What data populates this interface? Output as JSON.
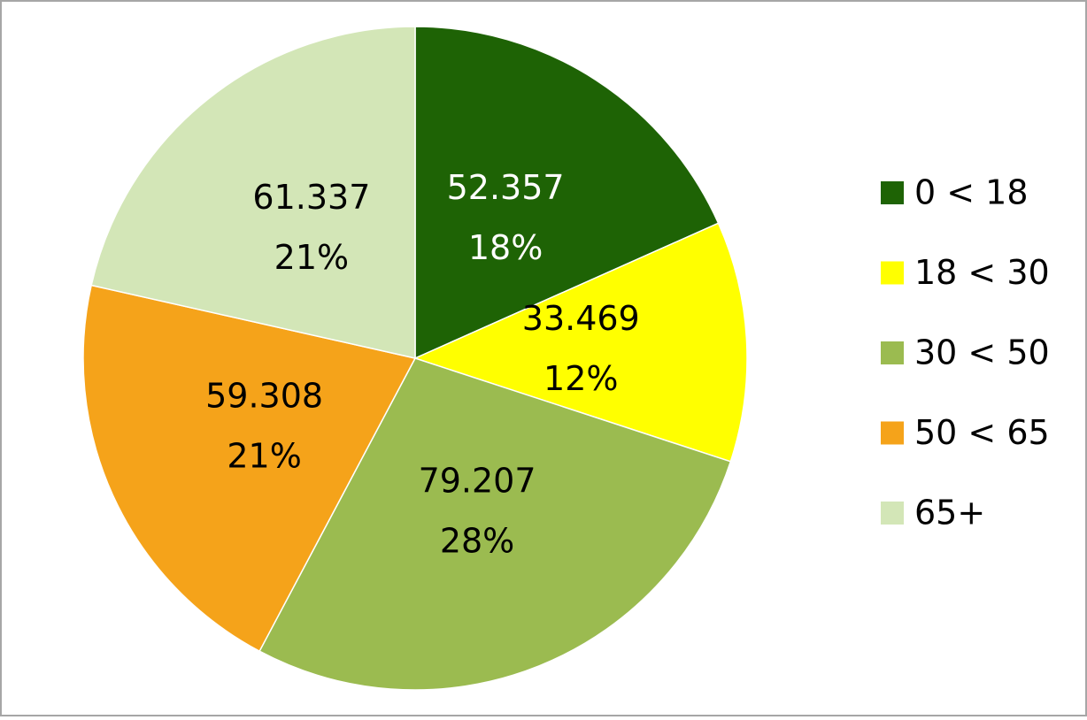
{
  "chart_data": {
    "type": "pie",
    "categories": [
      "0 < 18",
      "18 < 30",
      "30 < 50",
      "50 < 65",
      "65+"
    ],
    "values": [
      52.357,
      33.469,
      79.207,
      59.308,
      61.337
    ],
    "percent_labels": [
      "18%",
      "12%",
      "28%",
      "21%",
      "21%"
    ],
    "colors": [
      "#1e6305",
      "#ffff00",
      "#9bbb50",
      "#f5a31a",
      "#d3e6b7"
    ],
    "label_colors": [
      "#ffffff",
      "#000000",
      "#000000",
      "#000000",
      "#000000"
    ],
    "legend": "right"
  }
}
